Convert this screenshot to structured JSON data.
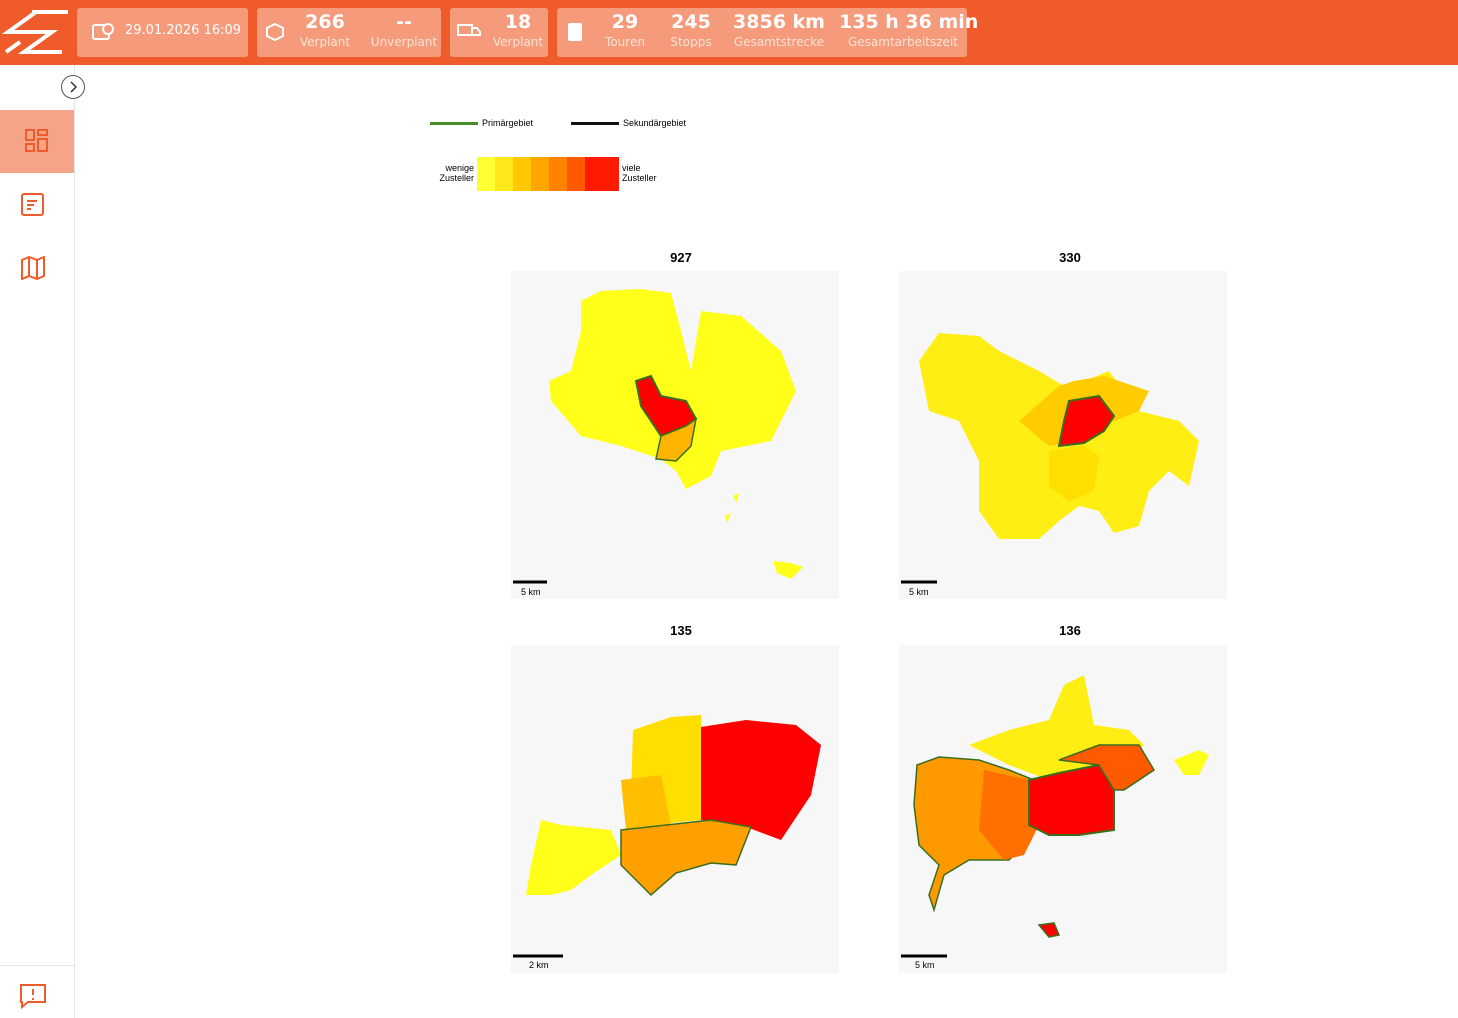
{
  "header": {
    "date": "29.01.2026 16:09",
    "stats": [
      {
        "value": "266",
        "label": "Verplant"
      },
      {
        "value": "--",
        "label": "Unverplant"
      },
      {
        "value": "18",
        "label": "Verplant"
      },
      {
        "value": "29",
        "label": "Touren"
      },
      {
        "value": "245",
        "label": "Stopps"
      },
      {
        "value": "3856 km",
        "label": "Gesamtstrecke"
      },
      {
        "value": "135 h 36 min",
        "label": "Gesamtarbeitszeit"
      }
    ]
  },
  "legend": {
    "primary": "Primärgebiet",
    "secondary": "Sekundärgebiet",
    "low": "wenige Zusteller",
    "high": "viele Zusteller"
  },
  "maps": [
    {
      "title": "927",
      "scale": "5 km"
    },
    {
      "title": "330",
      "scale": "5 km"
    },
    {
      "title": "135",
      "scale": "2 km"
    },
    {
      "title": "136",
      "scale": "5 km"
    }
  ]
}
